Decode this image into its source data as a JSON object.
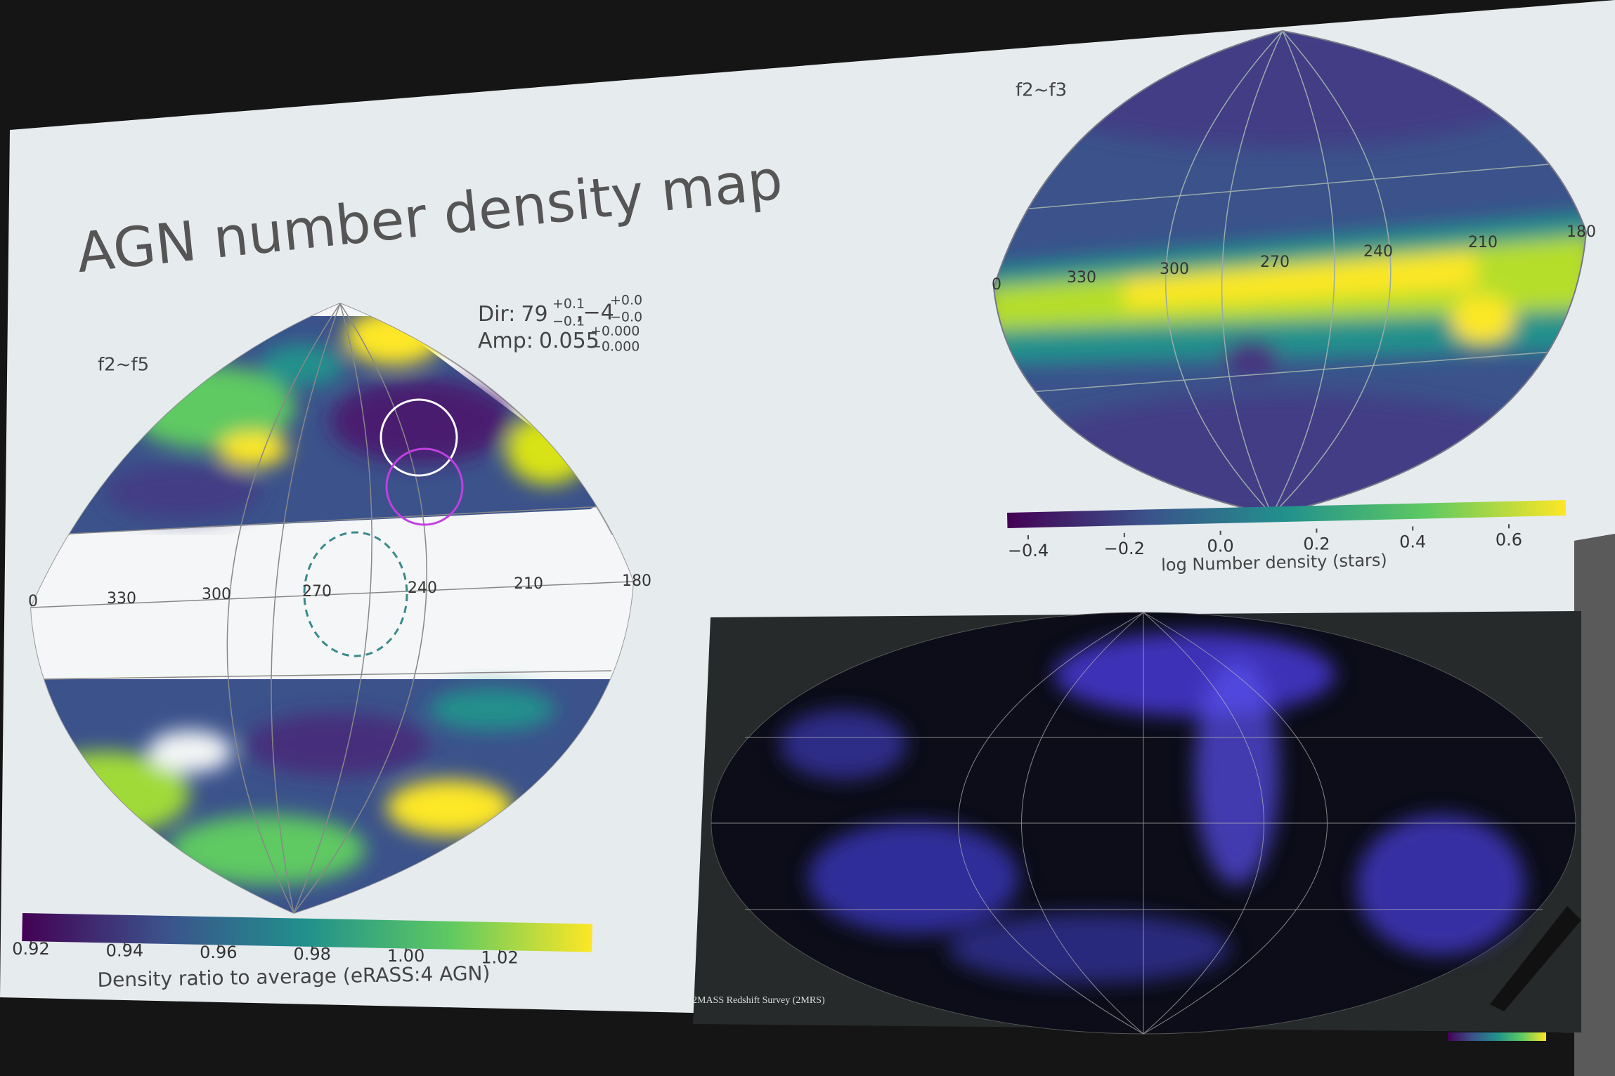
{
  "slide": {
    "title": "AGN number density map"
  },
  "left_map": {
    "label": "f2~f5",
    "longitude_labels": [
      "0",
      "330",
      "300",
      "270",
      "240",
      "210",
      "180"
    ],
    "annotation": {
      "dir": {
        "prefix": "Dir:",
        "lon": "79",
        "lon_upper": "+0.1",
        "lon_lower": "−0.1",
        "lat": ",−4",
        "lat_upper": "+0.0",
        "lat_lower": "−0.0"
      },
      "amp": {
        "prefix": "Amp:",
        "value": "0.055",
        "upper": "+0.000",
        "lower": "−0.000"
      }
    },
    "colorbar": {
      "ticks": [
        0.92,
        0.94,
        0.96,
        0.98,
        {
          "value": 1,
          "label": "1.00"
        },
        1.02
      ],
      "label": "Density ratio to average (eRASS:4 AGN)"
    }
  },
  "right_map": {
    "label": "f2~f3",
    "longitude_labels": [
      "0",
      "330",
      "300",
      "270",
      "240",
      "210",
      "180"
    ],
    "colorbar": {
      "ticks": [
        {
          "value": -0.4,
          "label": "−0.4"
        },
        {
          "value": -0.2,
          "label": "−0.2"
        },
        {
          "value": 0,
          "label": "0.0"
        },
        0.2,
        0.4,
        0.6
      ],
      "label": "log Number density (stars)"
    }
  },
  "image_panel": {
    "caption": "2MASS Redshift Survey (2MRS)"
  }
}
